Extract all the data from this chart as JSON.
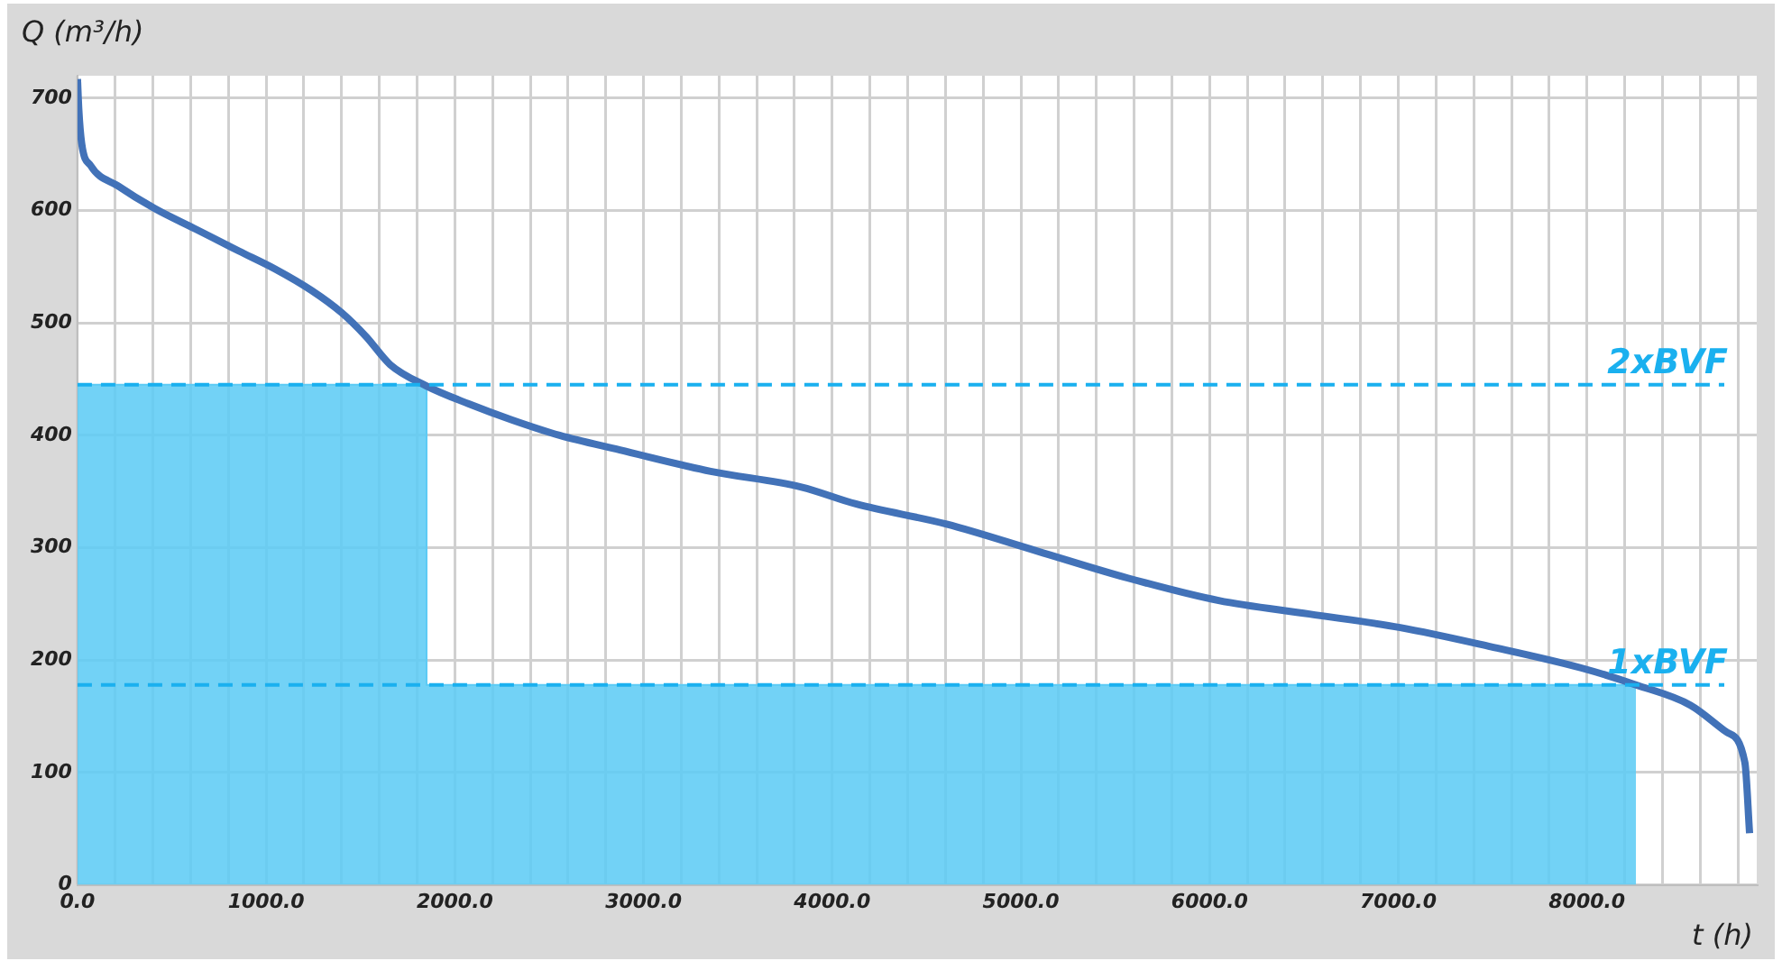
{
  "chart_data": {
    "type": "line",
    "xlabel": "t (h)",
    "ylabel": "Q (m³/h)",
    "xlim": [
      0,
      8900
    ],
    "xticks": [
      {
        "value": 0,
        "label": "0.0"
      },
      {
        "value": 200,
        "label": null
      },
      {
        "value": 400,
        "label": null
      },
      {
        "value": 600,
        "label": null
      },
      {
        "value": 800,
        "label": null
      },
      {
        "value": 1000,
        "label": "1000.0"
      },
      {
        "value": 1200,
        "label": null
      },
      {
        "value": 1400,
        "label": null
      },
      {
        "value": 1600,
        "label": null
      },
      {
        "value": 1800,
        "label": null
      },
      {
        "value": 2000,
        "label": "2000.0"
      },
      {
        "value": 2200,
        "label": null
      },
      {
        "value": 2400,
        "label": null
      },
      {
        "value": 2600,
        "label": null
      },
      {
        "value": 2800,
        "label": null
      },
      {
        "value": 3000,
        "label": "3000.0"
      },
      {
        "value": 3200,
        "label": null
      },
      {
        "value": 3400,
        "label": null
      },
      {
        "value": 3600,
        "label": null
      },
      {
        "value": 3800,
        "label": null
      },
      {
        "value": 4000,
        "label": "4000.0"
      },
      {
        "value": 4200,
        "label": null
      },
      {
        "value": 4400,
        "label": null
      },
      {
        "value": 4600,
        "label": null
      },
      {
        "value": 4800,
        "label": null
      },
      {
        "value": 5000,
        "label": "5000.0"
      },
      {
        "value": 5200,
        "label": null
      },
      {
        "value": 5400,
        "label": null
      },
      {
        "value": 5600,
        "label": null
      },
      {
        "value": 5800,
        "label": null
      },
      {
        "value": 6000,
        "label": "6000.0"
      },
      {
        "value": 6200,
        "label": null
      },
      {
        "value": 6400,
        "label": null
      },
      {
        "value": 6600,
        "label": null
      },
      {
        "value": 6800,
        "label": null
      },
      {
        "value": 7000,
        "label": "7000.0"
      },
      {
        "value": 7200,
        "label": null
      },
      {
        "value": 7400,
        "label": null
      },
      {
        "value": 7600,
        "label": null
      },
      {
        "value": 7800,
        "label": null
      },
      {
        "value": 8000,
        "label": "8000.0"
      },
      {
        "value": 8200,
        "label": null
      },
      {
        "value": 8400,
        "label": null
      },
      {
        "value": 8600,
        "label": null
      },
      {
        "value": 8800,
        "label": null
      }
    ],
    "ylim": [
      0,
      720
    ],
    "yticks": [
      0,
      100,
      200,
      300,
      400,
      500,
      600,
      700
    ],
    "grid": true,
    "series": [
      {
        "type": "area",
        "color": "#5ccbf5",
        "x": [
          0,
          1850,
          1850,
          8260
        ],
        "values": [
          445,
          445,
          178,
          178
        ]
      },
      {
        "type": "line",
        "color": "#4272b8",
        "x": [
          0,
          7,
          22,
          70,
          214,
          407,
          632,
          856,
          1048,
          1240,
          1401,
          1529,
          1657,
          1849,
          2074,
          2298,
          2555,
          2875,
          3356,
          3837,
          4125,
          4606,
          5087,
          5567,
          6048,
          6529,
          7010,
          7490,
          7971,
          8260,
          8548,
          8740,
          8837,
          8862
        ],
        "values": [
          717,
          690,
          660,
          640,
          622,
          602,
          583,
          564,
          548,
          529,
          509,
          488,
          463,
          444,
          428,
          414,
          400,
          387,
          368,
          354,
          339,
          321,
          297,
          273,
          253,
          241,
          229,
          212,
          193,
          178,
          160,
          136,
          109,
          46
        ]
      }
    ],
    "ref_lines": [
      {
        "axis": "y",
        "value": 445,
        "label": "2xBVF",
        "color": "#1ab0ef",
        "line_style": "dashed"
      },
      {
        "axis": "y",
        "value": 178,
        "label": "1xBVF",
        "color": "#1ab0ef",
        "line_style": "dashed"
      }
    ]
  }
}
